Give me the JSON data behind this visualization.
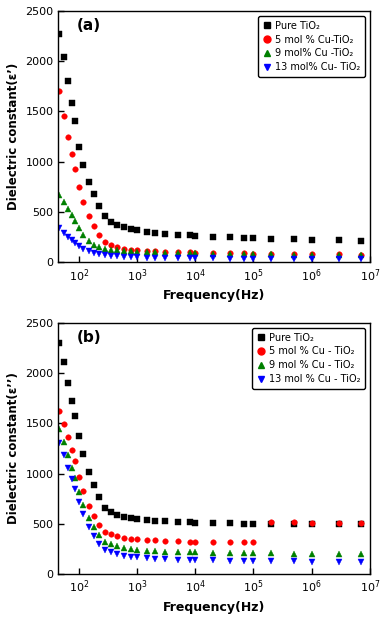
{
  "fig_width": 3.87,
  "fig_height": 6.21,
  "dpi": 100,
  "background_color": "white",
  "subplot_a": {
    "label": "(a)",
    "ylabel": "Dielectric constant(ε’)",
    "xlabel": "Frequency(Hz)",
    "xlim_log": [
      1.65,
      7
    ],
    "ylim": [
      0,
      2500
    ],
    "yticks": [
      0,
      500,
      1000,
      1500,
      2000,
      2500
    ],
    "legend": [
      {
        "label": "Pure TiO₂",
        "color": "black",
        "marker": "s"
      },
      {
        "label": "5 mol % Cu-TiO₂",
        "color": "red",
        "marker": "o"
      },
      {
        "label": "9 mol% Cu -TiO₂",
        "color": "green",
        "marker": "^"
      },
      {
        "label": "13 mol% Cu- TiO₂",
        "color": "blue",
        "marker": "v"
      }
    ],
    "series": [
      {
        "color": "black",
        "marker": "s",
        "x": [
          45,
          55,
          65,
          75,
          85,
          100,
          120,
          150,
          180,
          220,
          280,
          350,
          450,
          600,
          800,
          1000,
          1500,
          2000,
          3000,
          5000,
          8000,
          10000,
          20000,
          40000,
          70000,
          100000,
          200000,
          500000,
          1000000,
          3000000,
          7000000
        ],
        "y": [
          2270,
          2040,
          1800,
          1580,
          1400,
          1150,
          970,
          800,
          680,
          560,
          460,
          400,
          370,
          345,
          330,
          320,
          305,
          295,
          285,
          275,
          268,
          262,
          255,
          248,
          242,
          238,
          232,
          228,
          225,
          222,
          215
        ]
      },
      {
        "color": "red",
        "marker": "o",
        "x": [
          45,
          55,
          65,
          75,
          85,
          100,
          120,
          150,
          180,
          220,
          280,
          350,
          450,
          600,
          800,
          1000,
          1500,
          2000,
          3000,
          5000,
          8000,
          10000,
          20000,
          40000,
          70000,
          100000,
          200000,
          500000,
          1000000,
          3000000,
          7000000
        ],
        "y": [
          1700,
          1450,
          1250,
          1080,
          930,
          750,
          600,
          460,
          360,
          270,
          200,
          170,
          150,
          135,
          125,
          118,
          112,
          108,
          104,
          100,
          97,
          95,
          92,
          89,
          87,
          85,
          83,
          81,
          79,
          77,
          74
        ]
      },
      {
        "color": "green",
        "marker": "^",
        "x": [
          45,
          55,
          65,
          75,
          85,
          100,
          120,
          150,
          180,
          220,
          280,
          350,
          450,
          600,
          800,
          1000,
          1500,
          2000,
          3000,
          5000,
          8000,
          10000,
          20000,
          40000,
          70000,
          100000,
          200000,
          500000,
          1000000,
          3000000,
          7000000
        ],
        "y": [
          670,
          600,
          530,
          470,
          410,
          340,
          275,
          215,
          175,
          150,
          135,
          125,
          118,
          112,
          107,
          104,
          100,
          97,
          94,
          91,
          88,
          87,
          84,
          82,
          80,
          79,
          77,
          75,
          74,
          72,
          70
        ]
      },
      {
        "color": "blue",
        "marker": "v",
        "x": [
          45,
          55,
          65,
          75,
          85,
          100,
          120,
          150,
          180,
          220,
          280,
          350,
          450,
          600,
          800,
          1000,
          1500,
          2000,
          3000,
          5000,
          8000,
          10000,
          20000,
          40000,
          70000,
          100000,
          200000,
          500000,
          1000000,
          3000000,
          7000000
        ],
        "y": [
          340,
          295,
          255,
          220,
          190,
          158,
          130,
          108,
          90,
          78,
          68,
          62,
          57,
          53,
          50,
          48,
          46,
          44,
          42,
          41,
          39,
          38,
          37,
          36,
          35,
          34,
          33,
          32,
          31,
          30,
          29
        ]
      }
    ]
  },
  "subplot_b": {
    "label": "(b)",
    "ylabel": "Dielectric constant(ε’’)",
    "xlabel": "Frequency(Hz)",
    "xlim_log": [
      1.65,
      7
    ],
    "ylim": [
      0,
      2500
    ],
    "yticks": [
      0,
      500,
      1000,
      1500,
      2000,
      2500
    ],
    "legend": [
      {
        "label": "Pure TiO₂",
        "color": "black",
        "marker": "s"
      },
      {
        "label": "5 mol % Cu - TiO₂",
        "color": "red",
        "marker": "o"
      },
      {
        "label": "9 mol % Cu - TiO₂",
        "color": "green",
        "marker": "^"
      },
      {
        "label": "13 mol % Cu - TiO₂",
        "color": "blue",
        "marker": "v"
      }
    ],
    "series": [
      {
        "color": "black",
        "marker": "s",
        "x": [
          45,
          55,
          65,
          75,
          85,
          100,
          120,
          150,
          180,
          220,
          280,
          350,
          450,
          600,
          800,
          1000,
          1500,
          2000,
          3000,
          5000,
          8000,
          10000,
          20000,
          40000,
          70000,
          100000,
          200000,
          500000,
          1000000,
          3000000,
          7000000
        ],
        "y": [
          2300,
          2110,
          1900,
          1720,
          1570,
          1370,
          1190,
          1020,
          890,
          770,
          660,
          620,
          590,
          570,
          558,
          550,
          538,
          532,
          525,
          518,
          513,
          510,
          506,
          503,
          501,
          500,
          498,
          497,
          496,
          495,
          494
        ]
      },
      {
        "color": "red",
        "marker": "o",
        "x": [
          45,
          55,
          65,
          75,
          85,
          100,
          120,
          150,
          180,
          220,
          280,
          350,
          450,
          600,
          800,
          1000,
          1500,
          2000,
          3000,
          5000,
          8000,
          10000,
          20000,
          40000,
          70000,
          100000,
          200000,
          500000,
          1000000,
          3000000,
          7000000
        ],
        "y": [
          1620,
          1490,
          1360,
          1230,
          1120,
          970,
          825,
          680,
          578,
          490,
          420,
          395,
          375,
          360,
          350,
          344,
          338,
          334,
          330,
          326,
          323,
          321,
          319,
          317,
          316,
          315,
          514,
          513,
          512,
          511,
          510
        ]
      },
      {
        "color": "green",
        "marker": "^",
        "x": [
          45,
          55,
          65,
          75,
          85,
          100,
          120,
          150,
          180,
          220,
          280,
          350,
          450,
          600,
          800,
          1000,
          1500,
          2000,
          3000,
          5000,
          8000,
          10000,
          20000,
          40000,
          70000,
          100000,
          200000,
          500000,
          1000000,
          3000000,
          7000000
        ],
        "y": [
          1440,
          1310,
          1180,
          1060,
          960,
          820,
          690,
          560,
          465,
          385,
          320,
          295,
          275,
          258,
          247,
          240,
          233,
          229,
          224,
          220,
          217,
          215,
          212,
          210,
          208,
          207,
          205,
          203,
          202,
          200,
          198
        ]
      },
      {
        "color": "blue",
        "marker": "v",
        "x": [
          45,
          55,
          65,
          75,
          85,
          100,
          120,
          150,
          180,
          220,
          280,
          350,
          450,
          600,
          800,
          1000,
          1500,
          2000,
          3000,
          5000,
          8000,
          10000,
          20000,
          40000,
          70000,
          100000,
          200000,
          500000,
          1000000,
          3000000,
          7000000
        ],
        "y": [
          1300,
          1180,
          1060,
          950,
          850,
          720,
          595,
          470,
          378,
          300,
          240,
          215,
          198,
          183,
          172,
          165,
          158,
          153,
          148,
          144,
          140,
          138,
          135,
          132,
          130,
          129,
          127,
          125,
          123,
          121,
          119
        ]
      }
    ]
  }
}
